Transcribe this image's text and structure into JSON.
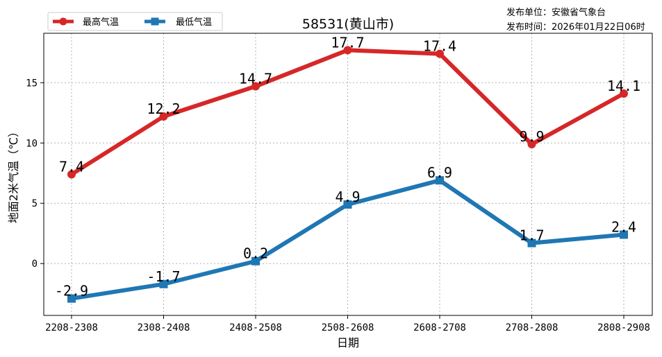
{
  "issuer": {
    "unit": "发布单位：安徽省气象台",
    "time": "发布时间：2026年01月22日06时"
  },
  "colors": {
    "high": "#d62728",
    "low": "#1f77b4"
  },
  "chart_data": {
    "type": "line",
    "title": "58531(黄山市)",
    "xlabel": "日期",
    "ylabel": "地面2米气温（℃）",
    "categories": [
      "2208-2308",
      "2308-2408",
      "2408-2508",
      "2508-2608",
      "2608-2708",
      "2708-2808",
      "2808-2908"
    ],
    "yticks": [
      0,
      5,
      10,
      15
    ],
    "ylim": [
      -4.3,
      19.1
    ],
    "grid": true,
    "legend_position": "top-left",
    "series": [
      {
        "name": "最高气温",
        "marker": "circle",
        "color": "#d62728",
        "values": [
          7.4,
          12.2,
          14.7,
          17.7,
          17.4,
          9.9,
          14.1
        ],
        "labels": [
          "7.4",
          "12.2",
          "14.7",
          "17.7",
          "17.4",
          "9.9",
          "14.1"
        ]
      },
      {
        "name": "最低气温",
        "marker": "square",
        "color": "#1f77b4",
        "values": [
          -2.9,
          -1.7,
          0.2,
          4.9,
          6.9,
          1.7,
          2.4
        ],
        "labels": [
          "-2.9",
          "-1.7",
          "0.2",
          "4.9",
          "6.9",
          "1.7",
          "2.4"
        ]
      }
    ]
  }
}
